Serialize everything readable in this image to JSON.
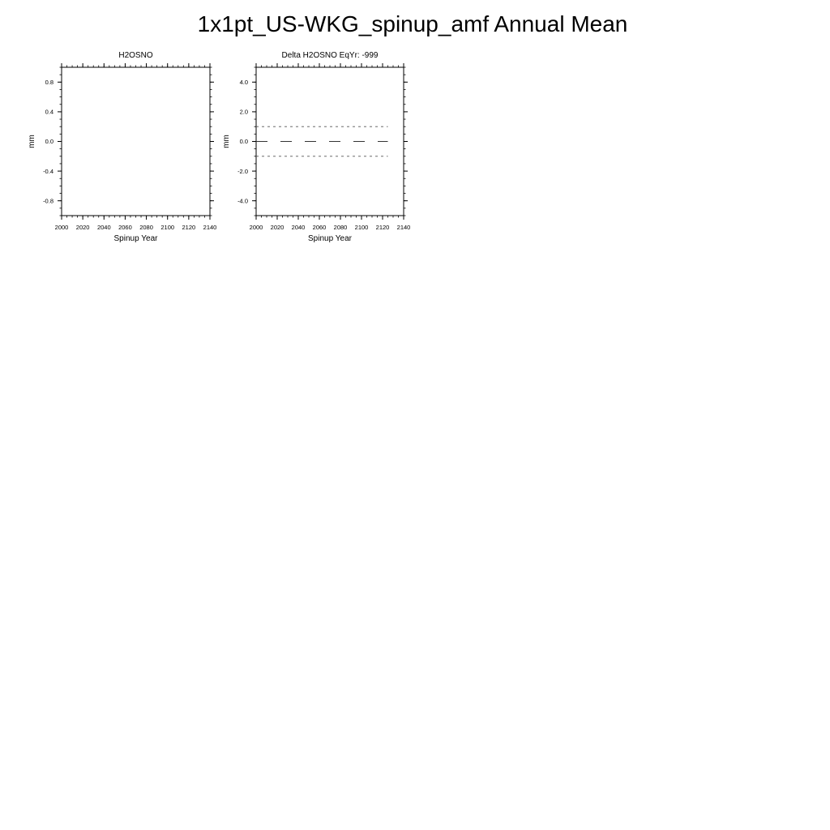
{
  "figure": {
    "title": "1x1pt_US-WKG_spinup_amf Annual Mean"
  },
  "chart_data": [
    {
      "type": "line",
      "title": "H2OSNO",
      "xlabel": "Spinup Year",
      "ylabel": "mm",
      "xlim": [
        2000,
        2140
      ],
      "ylim": [
        -1.0,
        1.0
      ],
      "x_ticks": [
        2000,
        2020,
        2040,
        2060,
        2080,
        2100,
        2120,
        2140
      ],
      "x_tick_labels": [
        "2000",
        "2020",
        "2040",
        "2060",
        "2080",
        "2100",
        "2120",
        "2140"
      ],
      "y_ticks": [
        0.8,
        0.4,
        0.0,
        -0.4,
        -0.8
      ],
      "y_tick_labels": [
        "0.8",
        "0.4",
        "0.0",
        "-0.4",
        "-0.8"
      ],
      "x_minor_step": 5,
      "y_minor_step": 0.1,
      "grid": false,
      "series": []
    },
    {
      "type": "line",
      "title": "Delta H2OSNO EqYr: -999",
      "xlabel": "Spinup Year",
      "ylabel": "mm",
      "xlim": [
        2000,
        2140
      ],
      "ylim": [
        -5.0,
        5.0
      ],
      "x_ticks": [
        2000,
        2020,
        2040,
        2060,
        2080,
        2100,
        2120,
        2140
      ],
      "x_tick_labels": [
        "2000",
        "2020",
        "2040",
        "2060",
        "2080",
        "2100",
        "2120",
        "2140"
      ],
      "y_ticks": [
        4.0,
        2.0,
        0.0,
        -2.0,
        -4.0
      ],
      "y_tick_labels": [
        "4.0",
        "2.0",
        "0.0",
        "-2.0",
        "-4.0"
      ],
      "x_minor_step": 5,
      "y_minor_step": 0.5,
      "grid": false,
      "series": [
        {
          "x": [
            2000,
            2125
          ],
          "y": [
            1.0,
            1.0
          ],
          "style": "short-dash",
          "color": "#555555"
        },
        {
          "x": [
            2000,
            2125
          ],
          "y": [
            0.0,
            0.0
          ],
          "style": "long-dash",
          "color": "#333333"
        },
        {
          "x": [
            2000,
            2125
          ],
          "y": [
            -1.0,
            -1.0
          ],
          "style": "short-dash",
          "color": "#555555"
        }
      ]
    }
  ]
}
